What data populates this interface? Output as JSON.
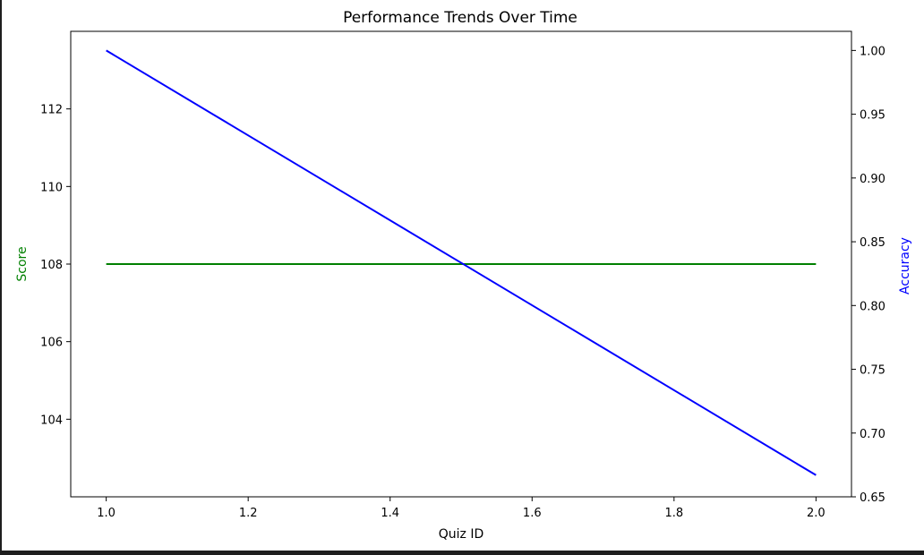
{
  "chart_data": {
    "type": "line",
    "title": "Performance Trends Over Time",
    "xlabel": "Quiz ID",
    "ylabel_left": "Score",
    "ylabel_right": "Accuracy",
    "x": [
      1.0,
      2.0
    ],
    "xlim": [
      0.95,
      2.05
    ],
    "xticks": [
      1.0,
      1.2,
      1.4,
      1.6,
      1.8,
      2.0
    ],
    "xtick_labels": [
      "1.0",
      "1.2",
      "1.4",
      "1.6",
      "1.8",
      "2.0"
    ],
    "ylim_left": [
      102.0,
      114.0
    ],
    "yticks_left": [
      104,
      106,
      108,
      110,
      112
    ],
    "ytick_labels_left": [
      "104",
      "106",
      "108",
      "110",
      "112"
    ],
    "ylim_right": [
      0.65,
      1.015
    ],
    "yticks_right": [
      0.65,
      0.7,
      0.75,
      0.8,
      0.85,
      0.9,
      0.95,
      1.0
    ],
    "ytick_labels_right": [
      "0.65",
      "0.70",
      "0.75",
      "0.80",
      "0.85",
      "0.90",
      "0.95",
      "1.00"
    ],
    "series": [
      {
        "axis": "left",
        "color": "#008000",
        "values": [
          108,
          108
        ]
      },
      {
        "axis": "right",
        "color": "#0000ff",
        "values": [
          1.0,
          0.667
        ]
      }
    ],
    "grid": false,
    "colors": {
      "left_label": "#008000",
      "right_label": "#0000ff",
      "axis": "#000000"
    }
  }
}
